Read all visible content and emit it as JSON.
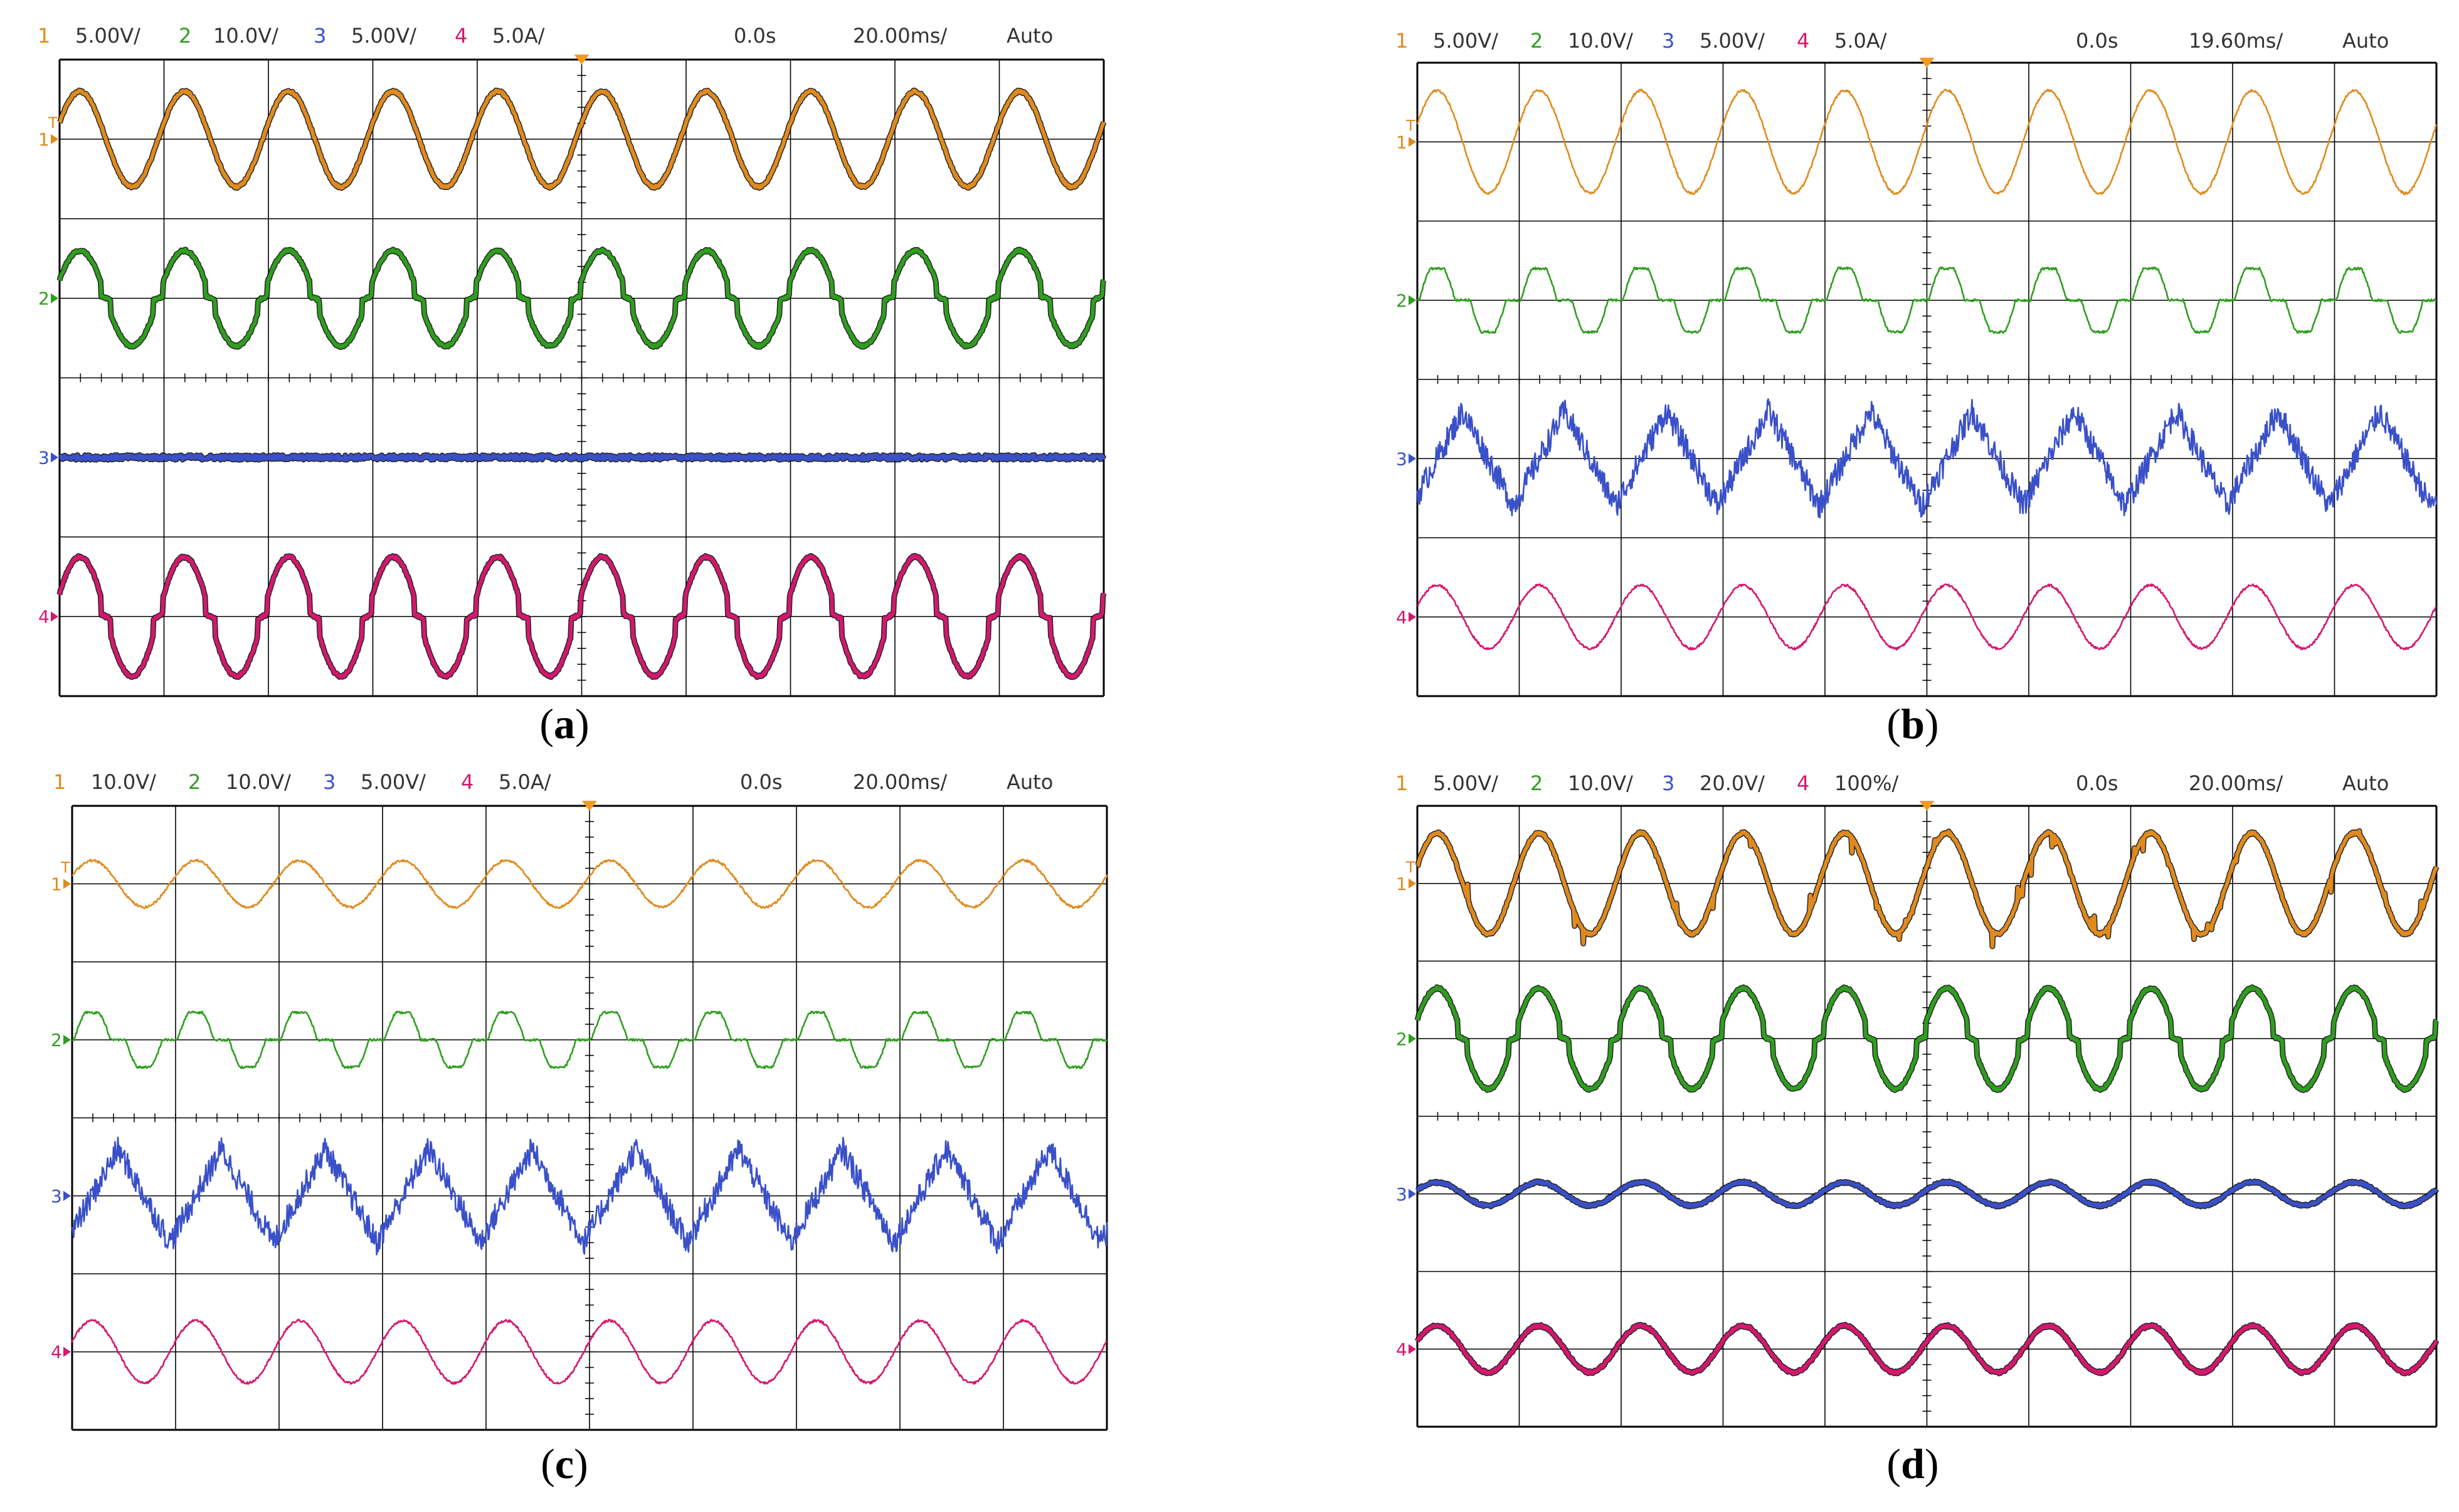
{
  "panels": [
    {
      "id": "a",
      "caption": {
        "open": "(",
        "letter": "a",
        "close": ")"
      },
      "header": {
        "ch1": {
          "num": "1",
          "scale": "5.00V/"
        },
        "ch2": {
          "num": "2",
          "scale": "10.0V/"
        },
        "ch3": {
          "num": "3",
          "scale": "5.00V/"
        },
        "ch4": {
          "num": "4",
          "scale": "5.0A/"
        },
        "delay": "0.0s",
        "timebase": "20.00ms/",
        "trigger": "Auto"
      },
      "markers": [
        "1",
        "2",
        "3",
        "4"
      ],
      "trigger_marker": "T"
    },
    {
      "id": "b",
      "caption": {
        "open": "(",
        "letter": "b",
        "close": ")"
      },
      "header": {
        "ch1": {
          "num": "1",
          "scale": "5.00V/"
        },
        "ch2": {
          "num": "2",
          "scale": "10.0V/"
        },
        "ch3": {
          "num": "3",
          "scale": "5.00V/"
        },
        "ch4": {
          "num": "4",
          "scale": "5.0A/"
        },
        "delay": "0.0s",
        "timebase": "19.60ms/",
        "trigger": "Auto"
      },
      "markers": [
        "1",
        "2",
        "3",
        "4"
      ],
      "trigger_marker": "T"
    },
    {
      "id": "c",
      "caption": {
        "open": "(",
        "letter": "c",
        "close": ")"
      },
      "header": {
        "ch1": {
          "num": "1",
          "scale": "10.0V/"
        },
        "ch2": {
          "num": "2",
          "scale": "10.0V/"
        },
        "ch3": {
          "num": "3",
          "scale": "5.00V/"
        },
        "ch4": {
          "num": "4",
          "scale": "5.0A/"
        },
        "delay": "0.0s",
        "timebase": "20.00ms/",
        "trigger": "Auto"
      },
      "markers": [
        "1",
        "2",
        "3",
        "4"
      ],
      "trigger_marker": "T"
    },
    {
      "id": "d",
      "caption": {
        "open": "(",
        "letter": "d",
        "close": ")"
      },
      "header": {
        "ch1": {
          "num": "1",
          "scale": "5.00V/"
        },
        "ch2": {
          "num": "2",
          "scale": "10.0V/"
        },
        "ch3": {
          "num": "3",
          "scale": "20.0V/"
        },
        "ch4": {
          "num": "4",
          "scale": "100%/"
        },
        "delay": "0.0s",
        "timebase": "20.00ms/",
        "trigger": "Auto"
      },
      "markers": [
        "1",
        "2",
        "3",
        "4"
      ],
      "trigger_marker": "T"
    }
  ],
  "colors": {
    "ch1": "#e08a1e",
    "ch2": "#2e9e1e",
    "ch3": "#3a50c8",
    "ch4": "#d4186e",
    "ch3_thin": "#4a60b8",
    "grid": "#000000",
    "text": "#333333"
  },
  "chart_data": [
    {
      "panel": "a",
      "type": "line",
      "x_divisions": 10,
      "y_divisions": 8,
      "timebase_per_div": "20.00ms",
      "cycles_on_screen": 10,
      "series": [
        {
          "name": "1",
          "unit_per_div": "5.00V",
          "shape": "sine",
          "amplitude_div": 0.6,
          "offset_div": -3.0
        },
        {
          "name": "2",
          "unit_per_div": "10.0V",
          "shape": "quasi-square sine (flat zero steps)",
          "amplitude_div": 0.6,
          "offset_div": -1.0
        },
        {
          "name": "3",
          "unit_per_div": "5.00V",
          "shape": "flat with noise",
          "amplitude_div": 0.0,
          "offset_div": 1.0
        },
        {
          "name": "4",
          "unit_per_div": "5.0A",
          "shape": "quasi-square sine",
          "amplitude_div": 0.75,
          "offset_div": 3.0
        }
      ]
    },
    {
      "panel": "b",
      "type": "line",
      "x_divisions": 10,
      "y_divisions": 8,
      "timebase_per_div": "19.60ms",
      "cycles_on_screen": 10,
      "series": [
        {
          "name": "1",
          "unit_per_div": "5.00V",
          "shape": "sine",
          "amplitude_div": 0.65,
          "offset_div": -3.0
        },
        {
          "name": "2",
          "unit_per_div": "10.0V",
          "shape": "quasi-square (stepped)",
          "amplitude_div": 0.4,
          "offset_div": -1.0
        },
        {
          "name": "3",
          "unit_per_div": "5.00V",
          "shape": "noisy triangular ripple",
          "amplitude_div": 0.6,
          "offset_div": 1.0
        },
        {
          "name": "4",
          "unit_per_div": "5.0A",
          "shape": "sine",
          "amplitude_div": 0.4,
          "offset_div": 3.0
        }
      ]
    },
    {
      "panel": "c",
      "type": "line",
      "x_divisions": 10,
      "y_divisions": 8,
      "timebase_per_div": "20.00ms",
      "cycles_on_screen": 10,
      "series": [
        {
          "name": "1",
          "unit_per_div": "10.0V",
          "shape": "sine",
          "amplitude_div": 0.3,
          "offset_div": -3.0
        },
        {
          "name": "2",
          "unit_per_div": "10.0V",
          "shape": "quasi-square (stepped)",
          "amplitude_div": 0.35,
          "offset_div": -1.0
        },
        {
          "name": "3",
          "unit_per_div": "5.00V",
          "shape": "noisy triangular ripple",
          "amplitude_div": 0.6,
          "offset_div": 1.0
        },
        {
          "name": "4",
          "unit_per_div": "5.0A",
          "shape": "sine",
          "amplitude_div": 0.4,
          "offset_div": 3.0
        }
      ]
    },
    {
      "panel": "d",
      "type": "line",
      "x_divisions": 10,
      "y_divisions": 8,
      "timebase_per_div": "20.00ms",
      "cycles_on_screen": 10,
      "series": [
        {
          "name": "1",
          "unit_per_div": "5.00V",
          "shape": "sine with spikes",
          "amplitude_div": 0.65,
          "offset_div": -3.0
        },
        {
          "name": "2",
          "unit_per_div": "10.0V",
          "shape": "quasi-square sine",
          "amplitude_div": 0.65,
          "offset_div": -1.0
        },
        {
          "name": "3",
          "unit_per_div": "20.0V",
          "shape": "small ripple",
          "amplitude_div": 0.15,
          "offset_div": 1.0
        },
        {
          "name": "4",
          "unit_per_div": "100%",
          "shape": "sine",
          "amplitude_div": 0.3,
          "offset_div": 3.0
        }
      ]
    }
  ]
}
